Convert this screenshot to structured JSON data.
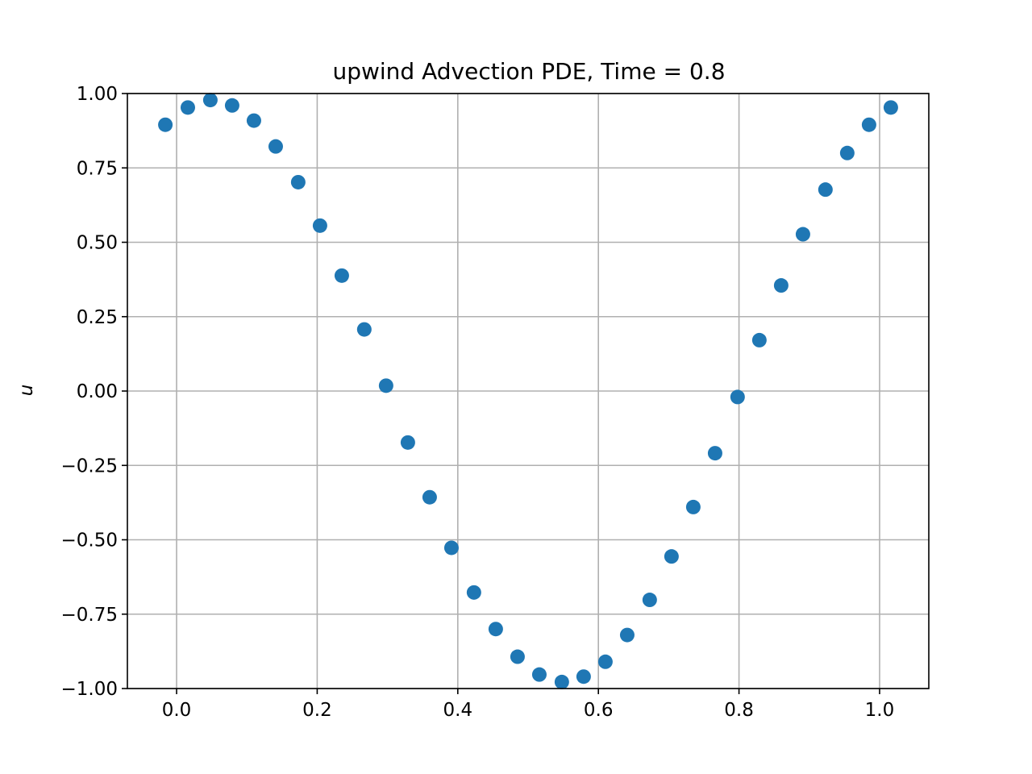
{
  "chart_data": {
    "type": "scatter",
    "title": "upwind Advection PDE, Time = 0.8",
    "xlabel": "",
    "ylabel": "u",
    "xlim": [
      -0.07,
      1.07
    ],
    "ylim": [
      -1.0,
      1.0
    ],
    "grid": true,
    "legend": "none",
    "marker_color": "#1f77b4",
    "xticks": [
      {
        "value": 0.0,
        "label": "0.0"
      },
      {
        "value": 0.2,
        "label": "0.2"
      },
      {
        "value": 0.4,
        "label": "0.4"
      },
      {
        "value": 0.6,
        "label": "0.6"
      },
      {
        "value": 0.8,
        "label": "0.8"
      },
      {
        "value": 1.0,
        "label": "1.0"
      }
    ],
    "yticks": [
      {
        "value": 1.0,
        "label": "1.00"
      },
      {
        "value": 0.75,
        "label": "0.75"
      },
      {
        "value": 0.5,
        "label": "0.50"
      },
      {
        "value": 0.25,
        "label": "0.25"
      },
      {
        "value": 0.0,
        "label": "0.00"
      },
      {
        "value": -0.25,
        "label": "−0.25"
      },
      {
        "value": -0.5,
        "label": "−0.50"
      },
      {
        "value": -0.75,
        "label": "−0.75"
      },
      {
        "value": -1.0,
        "label": "−1.00"
      }
    ],
    "series": [
      {
        "x": [
          -0.016,
          0.016,
          0.048,
          0.079,
          0.11,
          0.141,
          0.173,
          0.204,
          0.235,
          0.267,
          0.298,
          0.329,
          0.36,
          0.391,
          0.423,
          0.454,
          0.485,
          0.516,
          0.548,
          0.579,
          0.61,
          0.641,
          0.673,
          0.704,
          0.735,
          0.766,
          0.798,
          0.829,
          0.86,
          0.891,
          0.923,
          0.954,
          0.985,
          1.016
        ],
        "y": [
          0.895,
          0.953,
          0.978,
          0.96,
          0.909,
          0.822,
          0.702,
          0.556,
          0.388,
          0.207,
          0.018,
          -0.173,
          -0.357,
          -0.527,
          -0.677,
          -0.8,
          -0.893,
          -0.953,
          -0.978,
          -0.96,
          -0.91,
          -0.82,
          -0.702,
          -0.556,
          -0.39,
          -0.209,
          -0.02,
          0.171,
          0.355,
          0.527,
          0.677,
          0.8,
          0.895,
          0.953
        ]
      }
    ]
  }
}
